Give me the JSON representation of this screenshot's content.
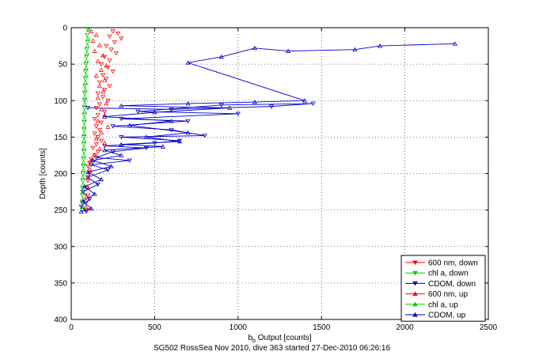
{
  "figure": {
    "footer": "SG502 RossSea Nov 2010, dive 363 started 27-Dec-2010 06:26:16"
  },
  "chart_data": {
    "type": "scatter",
    "xlabel": "b_b Output [counts]",
    "xlabel_main": "b",
    "xlabel_sub": "b",
    "xlabel_rest": " Output [counts]",
    "ylabel": "Depth [counts]",
    "xlim": [
      0,
      2500
    ],
    "ylim": [
      0,
      400
    ],
    "y_reversed": true,
    "xticks": [
      0,
      500,
      1000,
      1500,
      2000,
      2500
    ],
    "yticks": [
      0,
      50,
      100,
      150,
      200,
      250,
      300,
      350,
      400
    ],
    "grid": true,
    "legend_position": "bottom-right",
    "series": [
      {
        "name": "600 nm, down",
        "color": "#ff0000",
        "marker": "triangle-down",
        "connected": false,
        "points": [
          [
            250,
            5
          ],
          [
            280,
            8
          ],
          [
            230,
            12
          ],
          [
            300,
            15
          ],
          [
            260,
            20
          ],
          [
            210,
            25
          ],
          [
            240,
            30
          ],
          [
            270,
            35
          ],
          [
            200,
            40
          ],
          [
            230,
            45
          ],
          [
            180,
            50
          ],
          [
            220,
            55
          ],
          [
            250,
            60
          ],
          [
            190,
            65
          ],
          [
            210,
            70
          ],
          [
            170,
            75
          ],
          [
            230,
            80
          ],
          [
            200,
            85
          ],
          [
            160,
            90
          ],
          [
            190,
            95
          ],
          [
            220,
            100
          ],
          [
            170,
            105
          ],
          [
            150,
            110
          ],
          [
            200,
            115
          ],
          [
            160,
            120
          ],
          [
            140,
            125
          ],
          [
            180,
            130
          ],
          [
            150,
            135
          ],
          [
            170,
            140
          ],
          [
            140,
            145
          ],
          [
            160,
            150
          ],
          [
            180,
            155
          ],
          [
            150,
            160
          ],
          [
            130,
            165
          ],
          [
            160,
            170
          ],
          [
            140,
            175
          ],
          [
            120,
            180
          ],
          [
            110,
            185
          ],
          [
            100,
            190
          ],
          [
            110,
            200
          ],
          [
            100,
            210
          ],
          [
            95,
            220
          ],
          [
            100,
            230
          ],
          [
            90,
            240
          ],
          [
            95,
            250
          ]
        ]
      },
      {
        "name": "chl a, down",
        "color": "#00cc00",
        "marker": "triangle-down",
        "connected": false,
        "points": [
          [
            100,
            2
          ],
          [
            95,
            10
          ],
          [
            98,
            20
          ],
          [
            92,
            30
          ],
          [
            90,
            40
          ],
          [
            88,
            50
          ],
          [
            85,
            60
          ],
          [
            83,
            70
          ],
          [
            82,
            80
          ],
          [
            80,
            90
          ],
          [
            80,
            100
          ],
          [
            79,
            110
          ],
          [
            78,
            120
          ],
          [
            78,
            130
          ],
          [
            77,
            140
          ],
          [
            76,
            150
          ],
          [
            75,
            160
          ],
          [
            75,
            170
          ],
          [
            74,
            180
          ],
          [
            72,
            190
          ],
          [
            70,
            200
          ],
          [
            70,
            210
          ],
          [
            68,
            220
          ],
          [
            67,
            230
          ],
          [
            66,
            240
          ],
          [
            65,
            250
          ]
        ]
      },
      {
        "name": "CDOM, down",
        "color": "#0000cc",
        "marker": "triangle-down",
        "connected": true,
        "points": [
          [
            100,
            110
          ],
          [
            600,
            112
          ],
          [
            1200,
            108
          ],
          [
            1450,
            104
          ],
          [
            900,
            106
          ],
          [
            400,
            115
          ],
          [
            1000,
            118
          ],
          [
            300,
            125
          ],
          [
            700,
            128
          ],
          [
            250,
            135
          ],
          [
            600,
            140
          ],
          [
            800,
            148
          ],
          [
            300,
            150
          ],
          [
            650,
            155
          ],
          [
            500,
            158
          ],
          [
            200,
            162
          ],
          [
            450,
            165
          ],
          [
            250,
            170
          ],
          [
            150,
            178
          ],
          [
            350,
            182
          ],
          [
            120,
            188
          ],
          [
            220,
            195
          ],
          [
            100,
            205
          ],
          [
            160,
            215
          ],
          [
            70,
            225
          ],
          [
            110,
            235
          ],
          [
            60,
            245
          ],
          [
            90,
            252
          ]
        ]
      },
      {
        "name": "600 nm, up",
        "color": "#ff0000",
        "marker": "triangle-up",
        "connected": false,
        "points": [
          [
            120,
            5
          ],
          [
            150,
            10
          ],
          [
            130,
            18
          ],
          [
            170,
            24
          ],
          [
            140,
            32
          ],
          [
            190,
            38
          ],
          [
            160,
            46
          ],
          [
            210,
            52
          ],
          [
            180,
            58
          ],
          [
            150,
            66
          ],
          [
            200,
            72
          ],
          [
            170,
            80
          ],
          [
            190,
            88
          ],
          [
            160,
            96
          ],
          [
            210,
            104
          ],
          [
            180,
            112
          ],
          [
            200,
            120
          ],
          [
            160,
            128
          ],
          [
            220,
            136
          ],
          [
            180,
            144
          ],
          [
            150,
            152
          ],
          [
            200,
            158
          ],
          [
            170,
            166
          ],
          [
            140,
            174
          ],
          [
            120,
            182
          ],
          [
            110,
            194
          ],
          [
            100,
            206
          ],
          [
            95,
            218
          ],
          [
            90,
            232
          ],
          [
            88,
            246
          ]
        ]
      },
      {
        "name": "chl a, up",
        "color": "#00cc00",
        "marker": "triangle-up",
        "connected": false,
        "points": [
          [
            105,
            3
          ],
          [
            100,
            15
          ],
          [
            97,
            25
          ],
          [
            95,
            35
          ],
          [
            92,
            45
          ],
          [
            90,
            55
          ],
          [
            88,
            65
          ],
          [
            86,
            75
          ],
          [
            84,
            85
          ],
          [
            82,
            95
          ],
          [
            81,
            105
          ],
          [
            80,
            115
          ],
          [
            79,
            125
          ],
          [
            78,
            135
          ],
          [
            78,
            145
          ],
          [
            77,
            155
          ],
          [
            76,
            165
          ],
          [
            75,
            175
          ],
          [
            74,
            185
          ],
          [
            73,
            195
          ],
          [
            71,
            205
          ],
          [
            70,
            215
          ],
          [
            69,
            225
          ],
          [
            68,
            235
          ],
          [
            67,
            245
          ]
        ]
      },
      {
        "name": "CDOM, up",
        "color": "#0000cc",
        "marker": "triangle-up",
        "connected": true,
        "points": [
          [
            2300,
            22
          ],
          [
            1850,
            25
          ],
          [
            1700,
            30
          ],
          [
            1300,
            32
          ],
          [
            1100,
            28
          ],
          [
            900,
            40
          ],
          [
            700,
            48
          ],
          [
            1400,
            100
          ],
          [
            1100,
            102
          ],
          [
            700,
            104
          ],
          [
            300,
            107
          ],
          [
            950,
            110
          ],
          [
            500,
            116
          ],
          [
            200,
            122
          ],
          [
            600,
            128
          ],
          [
            350,
            134
          ],
          [
            700,
            144
          ],
          [
            450,
            150
          ],
          [
            650,
            156
          ],
          [
            300,
            160
          ],
          [
            550,
            163
          ],
          [
            200,
            168
          ],
          [
            300,
            175
          ],
          [
            130,
            182
          ],
          [
            240,
            190
          ],
          [
            100,
            198
          ],
          [
            180,
            208
          ],
          [
            80,
            218
          ],
          [
            140,
            228
          ],
          [
            70,
            238
          ],
          [
            120,
            248
          ],
          [
            60,
            252
          ]
        ]
      }
    ]
  }
}
